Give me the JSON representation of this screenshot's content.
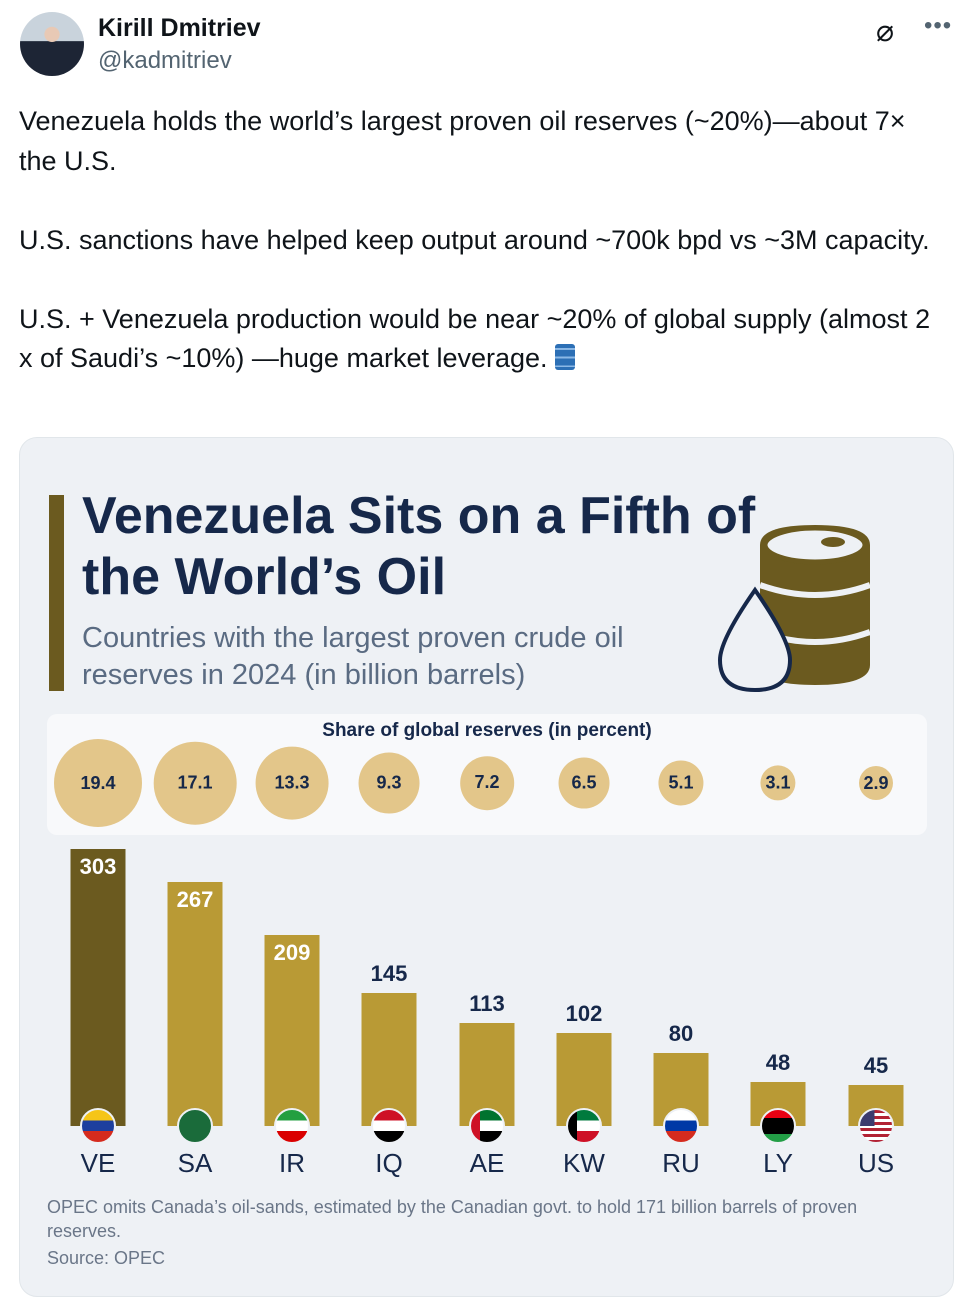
{
  "author": {
    "name": "Kirill Dmitriev",
    "handle": "@kadmitriev"
  },
  "icons": {
    "grok": "grok-icon",
    "more": "more-icon",
    "oil_barrel": "oil-drum-emoji"
  },
  "tweet_text": "Venezuela holds the world’s largest proven oil reserves (~20%)—about 7× the U.S.\n\nU.S. sanctions have helped keep output around ~700k bpd vs ~3M capacity.\n\nU.S. + Venezuela production would be near ~20% of global supply (almost 2 x of Saudi’s ~10%) —huge market leverage.",
  "infographic": {
    "title": "Venezuela Sits on a Fifth of the World’s Oil",
    "subtitle": "Countries with the largest proven crude oil reserves in 2024 (in billion barrels)",
    "share_title": "Share of global reserves (in percent)",
    "note": "OPEC omits Canada’s oil-sands, estimated by the Canadian govt. to hold 171 billion barrels of proven reserves.",
    "source": "Source: OPEC"
  },
  "colors": {
    "highlight_bar": "#6b5a1f",
    "bar": "#b99a35",
    "share_circle": "#e3c68a",
    "title": "#16284a"
  },
  "chart_data": {
    "type": "bar",
    "categories": [
      "VE",
      "SA",
      "IR",
      "IQ",
      "AE",
      "KW",
      "RU",
      "LY",
      "US"
    ],
    "values": [
      303,
      267,
      209,
      145,
      113,
      102,
      80,
      48,
      45
    ],
    "share_percent": [
      19.4,
      17.1,
      13.3,
      9.3,
      7.2,
      6.5,
      5.1,
      3.1,
      2.9
    ],
    "unit": "billion barrels",
    "highlight": "VE"
  }
}
